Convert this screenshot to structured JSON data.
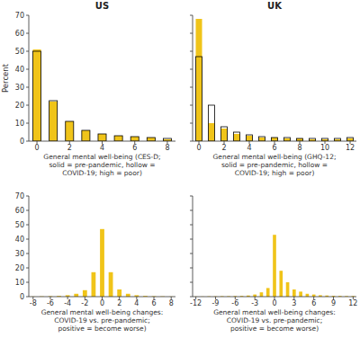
{
  "chart_data": [
    {
      "type": "bar",
      "title": "US",
      "y_label": "Percent",
      "x_label": [
        "General mental well-being (CES-D;",
        "solid = pre-pandemic, hollow =",
        "COVID-19; high = poor)"
      ],
      "x": [
        0,
        1,
        2,
        3,
        4,
        5,
        6,
        7,
        8
      ],
      "series": [
        {
          "color": "#f0c419",
          "values": [
            51,
            22,
            11,
            6,
            4,
            3,
            2.5,
            2,
            1
          ]
        },
        {
          "color": "#000000",
          "marker": "hollow",
          "values": [
            50,
            22.5,
            11,
            6,
            4,
            3,
            2.5,
            2,
            1.5
          ]
        }
      ],
      "xlim": [
        -0.5,
        8.5
      ],
      "xticks": [
        0,
        2,
        4,
        6,
        8
      ],
      "ylim": [
        0,
        70
      ],
      "yticks": [
        0,
        10,
        20,
        30,
        40,
        50,
        60,
        70
      ],
      "grid": false
    },
    {
      "type": "bar",
      "title": "UK",
      "x_label": [
        "General mental well-being (GHQ-12;",
        "solid = pre-pandemic, hollow =",
        "COVID-19; high = poor)"
      ],
      "x": [
        0,
        1,
        2,
        3,
        4,
        5,
        6,
        7,
        8,
        9,
        10,
        11,
        12
      ],
      "series": [
        {
          "color": "#f0c419",
          "values": [
            68,
            10,
            7,
            4,
            3,
            2,
            2,
            1.5,
            1.5,
            1,
            1,
            1,
            1.5
          ]
        },
        {
          "color": "#000000",
          "marker": "hollow",
          "values": [
            47,
            20,
            8,
            5,
            3.5,
            2.5,
            2,
            2,
            1.5,
            1.5,
            1.5,
            1.5,
            2
          ]
        }
      ],
      "xlim": [
        -0.5,
        12.5
      ],
      "xticks": [
        0,
        2,
        4,
        6,
        8,
        10,
        12
      ],
      "ylim": [
        0,
        70
      ],
      "yticks": [
        0,
        10,
        20,
        30,
        40,
        50,
        60,
        70
      ],
      "grid": false,
      "tick_labels": "x"
    },
    {
      "type": "bar",
      "x_label": [
        "General mental well-being changes:",
        "COVID-19 vs. pre-pandemic;",
        "positive = become worse)"
      ],
      "x": [
        -8,
        -7,
        -6,
        -5,
        -4,
        -3,
        -2,
        -1,
        0,
        1,
        2,
        3,
        4,
        5,
        6,
        7,
        8
      ],
      "series": [
        {
          "color": "#f0c419",
          "values": [
            0.1,
            0.2,
            0.3,
            0.5,
            1,
            2,
            4.5,
            17,
            47,
            17,
            5,
            2,
            1,
            0.5,
            0.3,
            0.2,
            0.1
          ]
        }
      ],
      "xlim": [
        -8.5,
        8.5
      ],
      "xticks": [
        -8,
        -6,
        -4,
        -2,
        0,
        2,
        4,
        6,
        8
      ],
      "ylim": [
        0,
        70
      ],
      "yticks": [
        0,
        10,
        20,
        30,
        40,
        50,
        60,
        70
      ],
      "grid": false
    },
    {
      "type": "bar",
      "x_label": [
        "General mental well-being changes:",
        "COVID-19 vs. pre-pandemic;",
        "positive = become worse)"
      ],
      "x": [
        -12,
        -11,
        -10,
        -9,
        -8,
        -7,
        -6,
        -5,
        -4,
        -3,
        -2,
        -1,
        0,
        1,
        2,
        3,
        4,
        5,
        6,
        7,
        8,
        9,
        10,
        11,
        12
      ],
      "series": [
        {
          "color": "#f0c419",
          "values": [
            0.1,
            0.1,
            0.2,
            0.2,
            0.3,
            0.3,
            0.4,
            0.5,
            0.8,
            1.5,
            3,
            6,
            43,
            18,
            10,
            5,
            3.5,
            2,
            1.5,
            1,
            0.8,
            0.6,
            0.5,
            0.4,
            0.4
          ]
        }
      ],
      "xlim": [
        -12.5,
        12.5
      ],
      "xticks": [
        -12,
        -9,
        -6,
        -3,
        0,
        3,
        6,
        9,
        12
      ],
      "ylim": [
        0,
        70
      ],
      "yticks": [
        0,
        10,
        20,
        30,
        40,
        50,
        60,
        70
      ],
      "grid": false,
      "tick_labels": "x"
    }
  ]
}
